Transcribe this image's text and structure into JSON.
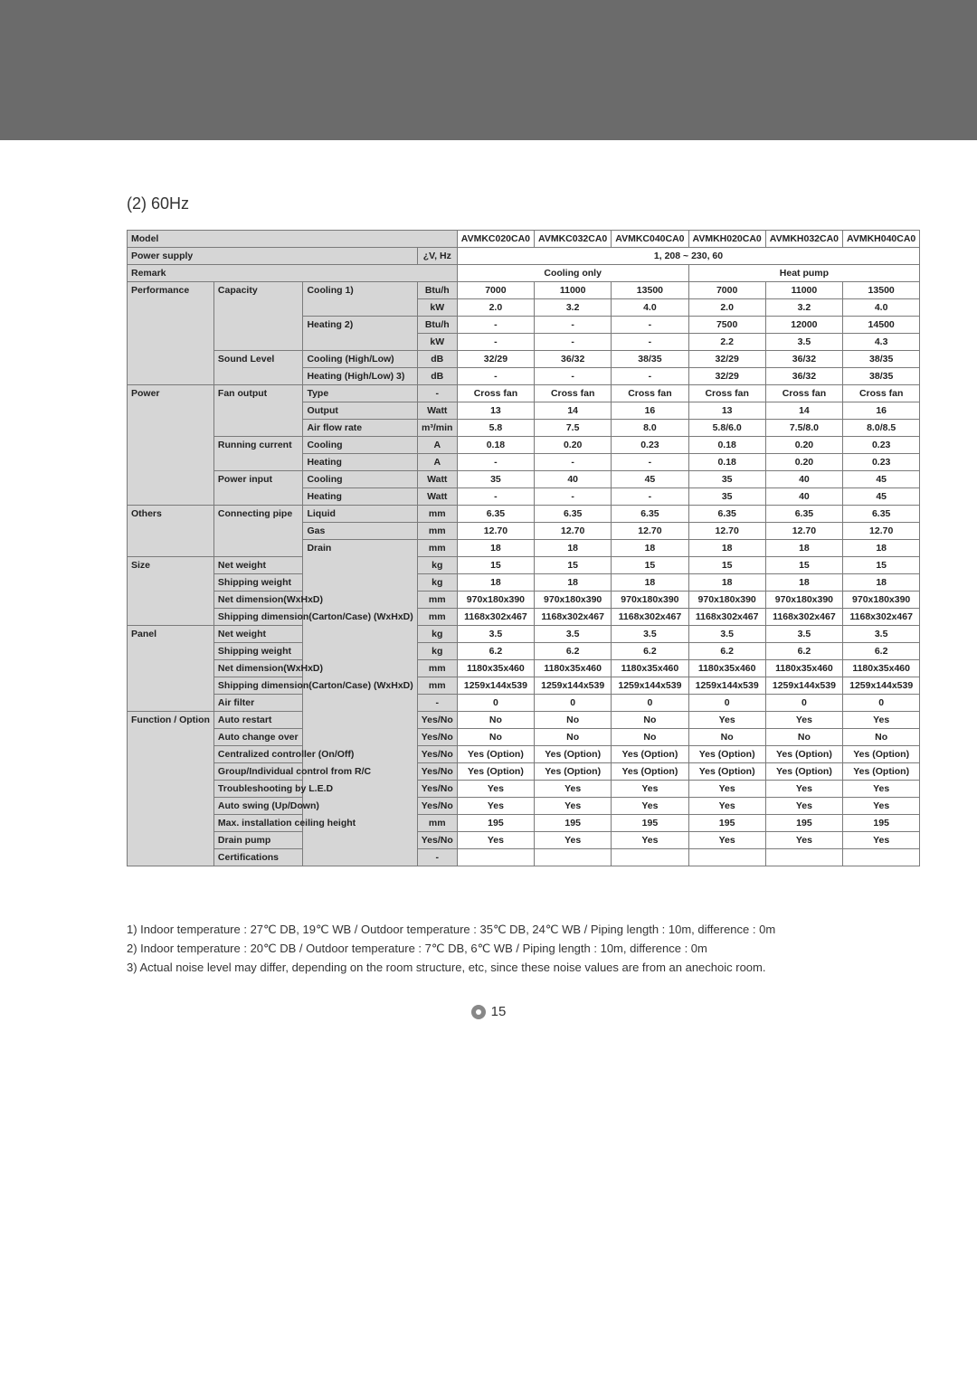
{
  "section_title": "(2) 60Hz",
  "models": [
    "AVMKC020CA0",
    "AVMKC032CA0",
    "AVMKC040CA0",
    "AVMKH020CA0",
    "AVMKH032CA0",
    "AVMKH040CA0"
  ],
  "header": {
    "model_label": "Model",
    "power_supply_label": "Power supply",
    "power_supply_unit": "¿V, Hz",
    "power_supply_value": "1, 208 ~ 230, 60",
    "remark_label": "Remark",
    "remark_cooling": "Cooling only",
    "remark_heat": "Heat pump"
  },
  "rows": [
    {
      "g": "Performance",
      "s": "Capacity",
      "p": "Cooling",
      "note": "1)",
      "u": "Btu/h",
      "v": [
        "7000",
        "11000",
        "13500",
        "7000",
        "11000",
        "13500"
      ]
    },
    {
      "g": "",
      "s": "",
      "p": "",
      "note": "",
      "u": "kW",
      "v": [
        "2.0",
        "3.2",
        "4.0",
        "2.0",
        "3.2",
        "4.0"
      ]
    },
    {
      "g": "",
      "s": "",
      "p": "Heating",
      "note": "2)",
      "u": "Btu/h",
      "v": [
        "-",
        "-",
        "-",
        "7500",
        "12000",
        "14500"
      ]
    },
    {
      "g": "",
      "s": "",
      "p": "",
      "note": "",
      "u": "kW",
      "v": [
        "-",
        "-",
        "-",
        "2.2",
        "3.5",
        "4.3"
      ]
    },
    {
      "g": "",
      "s": "Sound Level",
      "p": "Cooling (High/Low)",
      "note": "",
      "u": "dB",
      "v": [
        "32/29",
        "36/32",
        "38/35",
        "32/29",
        "36/32",
        "38/35"
      ]
    },
    {
      "g": "",
      "s": "",
      "p": "Heating (High/Low)",
      "note": "3)",
      "u": "dB",
      "v": [
        "-",
        "-",
        "-",
        "32/29",
        "36/32",
        "38/35"
      ]
    },
    {
      "g": "Power",
      "s": "Fan output",
      "p": "Type",
      "note": "",
      "u": "-",
      "v": [
        "Cross fan",
        "Cross fan",
        "Cross fan",
        "Cross fan",
        "Cross fan",
        "Cross fan"
      ]
    },
    {
      "g": "",
      "s": "",
      "p": "Output",
      "note": "",
      "u": "Watt",
      "v": [
        "13",
        "14",
        "16",
        "13",
        "14",
        "16"
      ]
    },
    {
      "g": "",
      "s": "",
      "p": "Air flow rate",
      "note": "",
      "u": "m³/min",
      "v": [
        "5.8",
        "7.5",
        "8.0",
        "5.8/6.0",
        "7.5/8.0",
        "8.0/8.5"
      ]
    },
    {
      "g": "",
      "s": "Running current",
      "p": "Cooling",
      "note": "",
      "u": "A",
      "v": [
        "0.18",
        "0.20",
        "0.23",
        "0.18",
        "0.20",
        "0.23"
      ]
    },
    {
      "g": "",
      "s": "",
      "p": "Heating",
      "note": "",
      "u": "A",
      "v": [
        "-",
        "-",
        "-",
        "0.18",
        "0.20",
        "0.23"
      ]
    },
    {
      "g": "",
      "s": "Power input",
      "p": "Cooling",
      "note": "",
      "u": "Watt",
      "v": [
        "35",
        "40",
        "45",
        "35",
        "40",
        "45"
      ]
    },
    {
      "g": "",
      "s": "",
      "p": "Heating",
      "note": "",
      "u": "Watt",
      "v": [
        "-",
        "-",
        "-",
        "35",
        "40",
        "45"
      ]
    },
    {
      "g": "Others",
      "s": "Connecting pipe",
      "p": "Liquid",
      "note": "",
      "u": "mm",
      "v": [
        "6.35",
        "6.35",
        "6.35",
        "6.35",
        "6.35",
        "6.35"
      ]
    },
    {
      "g": "",
      "s": "",
      "p": "Gas",
      "note": "",
      "u": "mm",
      "v": [
        "12.70",
        "12.70",
        "12.70",
        "12.70",
        "12.70",
        "12.70"
      ]
    },
    {
      "g": "",
      "s": "",
      "p": "Drain",
      "note": "",
      "u": "mm",
      "v": [
        "18",
        "18",
        "18",
        "18",
        "18",
        "18"
      ]
    },
    {
      "g": "Size",
      "s": "Net weight",
      "p": "",
      "note": "",
      "u": "kg",
      "v": [
        "15",
        "15",
        "15",
        "15",
        "15",
        "15"
      ]
    },
    {
      "g": "",
      "s": "Shipping weight",
      "p": "",
      "note": "",
      "u": "kg",
      "v": [
        "18",
        "18",
        "18",
        "18",
        "18",
        "18"
      ]
    },
    {
      "g": "",
      "s": "Net dimension(WxHxD)",
      "p": "",
      "note": "",
      "u": "mm",
      "v": [
        "970x180x390",
        "970x180x390",
        "970x180x390",
        "970x180x390",
        "970x180x390",
        "970x180x390"
      ]
    },
    {
      "g": "",
      "s": "Shipping dimension(Carton/Case) (WxHxD)",
      "p": "",
      "note": "",
      "u": "mm",
      "v": [
        "1168x302x467",
        "1168x302x467",
        "1168x302x467",
        "1168x302x467",
        "1168x302x467",
        "1168x302x467"
      ]
    },
    {
      "g": "Panel",
      "s": "Net weight",
      "p": "",
      "note": "",
      "u": "kg",
      "v": [
        "3.5",
        "3.5",
        "3.5",
        "3.5",
        "3.5",
        "3.5"
      ]
    },
    {
      "g": "",
      "s": "Shipping weight",
      "p": "",
      "note": "",
      "u": "kg",
      "v": [
        "6.2",
        "6.2",
        "6.2",
        "6.2",
        "6.2",
        "6.2"
      ]
    },
    {
      "g": "",
      "s": "Net dimension(WxHxD)",
      "p": "",
      "note": "",
      "u": "mm",
      "v": [
        "1180x35x460",
        "1180x35x460",
        "1180x35x460",
        "1180x35x460",
        "1180x35x460",
        "1180x35x460"
      ]
    },
    {
      "g": "",
      "s": "Shipping dimension(Carton/Case) (WxHxD)",
      "p": "",
      "note": "",
      "u": "mm",
      "v": [
        "1259x144x539",
        "1259x144x539",
        "1259x144x539",
        "1259x144x539",
        "1259x144x539",
        "1259x144x539"
      ]
    },
    {
      "g": "",
      "s": "Air filter",
      "p": "",
      "note": "",
      "u": "-",
      "v": [
        "0",
        "0",
        "0",
        "0",
        "0",
        "0"
      ]
    },
    {
      "g": "Function / Option",
      "s": "Auto restart",
      "p": "",
      "note": "",
      "u": "Yes/No",
      "v": [
        "No",
        "No",
        "No",
        "Yes",
        "Yes",
        "Yes"
      ]
    },
    {
      "g": "",
      "s": "Auto change over",
      "p": "",
      "note": "",
      "u": "Yes/No",
      "v": [
        "No",
        "No",
        "No",
        "No",
        "No",
        "No"
      ]
    },
    {
      "g": "",
      "s": "Centralized controller (On/Off)",
      "p": "",
      "note": "",
      "u": "Yes/No",
      "v": [
        "Yes (Option)",
        "Yes (Option)",
        "Yes (Option)",
        "Yes (Option)",
        "Yes (Option)",
        "Yes (Option)"
      ]
    },
    {
      "g": "",
      "s": "Group/Individual control from R/C",
      "p": "",
      "note": "",
      "u": "Yes/No",
      "v": [
        "Yes (Option)",
        "Yes (Option)",
        "Yes (Option)",
        "Yes (Option)",
        "Yes (Option)",
        "Yes (Option)"
      ]
    },
    {
      "g": "",
      "s": "Troubleshooting by L.E.D",
      "p": "",
      "note": "",
      "u": "Yes/No",
      "v": [
        "Yes",
        "Yes",
        "Yes",
        "Yes",
        "Yes",
        "Yes"
      ]
    },
    {
      "g": "",
      "s": "Auto swing (Up/Down)",
      "p": "",
      "note": "",
      "u": "Yes/No",
      "v": [
        "Yes",
        "Yes",
        "Yes",
        "Yes",
        "Yes",
        "Yes"
      ]
    },
    {
      "g": "",
      "s": "Max. installation ceiling height",
      "p": "",
      "note": "",
      "u": "mm",
      "v": [
        "195",
        "195",
        "195",
        "195",
        "195",
        "195"
      ]
    },
    {
      "g": "",
      "s": "Drain pump",
      "p": "",
      "note": "",
      "u": "Yes/No",
      "v": [
        "Yes",
        "Yes",
        "Yes",
        "Yes",
        "Yes",
        "Yes"
      ]
    },
    {
      "g": "",
      "s": "Certifications",
      "p": "",
      "note": "",
      "u": "-",
      "v": [
        "",
        "",
        "",
        "",
        "",
        ""
      ]
    }
  ],
  "notes": [
    "1) Indoor temperature : 27℃ DB, 19℃ WB / Outdoor temperature : 35℃ DB, 24℃ WB / Piping length : 10m, difference : 0m",
    "2) Indoor temperature : 20℃ DB             / Outdoor temperature : 7℃ DB, 6℃ WB    / Piping length : 10m, difference : 0m",
    "3) Actual noise level may differ, depending on the room structure, etc, since these noise values are from an anechoic room."
  ],
  "page_number": "15"
}
